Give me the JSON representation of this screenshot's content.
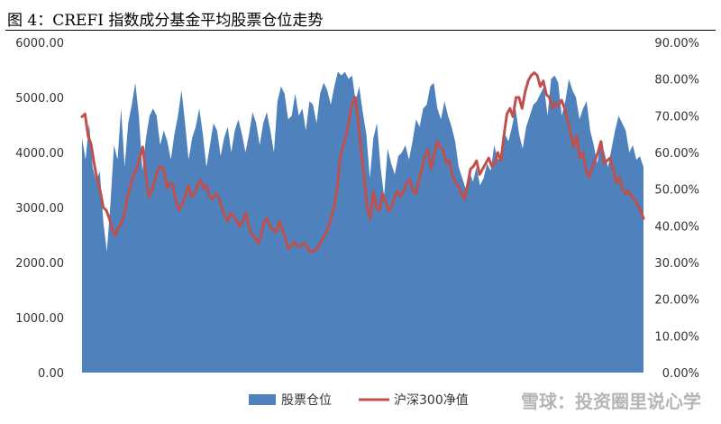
{
  "figure": {
    "title": "图 4：CREFI 指数成分基金平均股票仓位走势",
    "watermark": "雪球：投资圈里说心学"
  },
  "colors": {
    "area": "#4f81bd",
    "line": "#c0504d"
  },
  "chart_data": {
    "type": "area",
    "title": "",
    "left_axis": {
      "min": 0,
      "max": 6000,
      "ticks": [
        "0.00",
        "1000.00",
        "2000.00",
        "3000.00",
        "4000.00",
        "5000.00",
        "6000.00"
      ]
    },
    "right_axis": {
      "min": 0,
      "max": 0.9,
      "ticks": [
        "0.00%",
        "10.00%",
        "20.00%",
        "30.00%",
        "40.00%",
        "50.00%",
        "60.00%",
        "70.00%",
        "80.00%",
        "90.00%"
      ]
    },
    "x_labels_shown": false,
    "series": [
      {
        "name": "股票仓位",
        "type": "area",
        "axis": "right",
        "values": [
          0.64,
          0.58,
          0.68,
          0.56,
          0.52,
          0.55,
          0.41,
          0.33,
          0.46,
          0.62,
          0.58,
          0.72,
          0.56,
          0.68,
          0.73,
          0.79,
          0.7,
          0.55,
          0.64,
          0.7,
          0.72,
          0.7,
          0.62,
          0.66,
          0.63,
          0.58,
          0.65,
          0.7,
          0.77,
          0.68,
          0.58,
          0.64,
          0.67,
          0.72,
          0.65,
          0.56,
          0.62,
          0.68,
          0.66,
          0.59,
          0.64,
          0.67,
          0.6,
          0.66,
          0.69,
          0.65,
          0.6,
          0.65,
          0.71,
          0.68,
          0.62,
          0.68,
          0.71,
          0.66,
          0.6,
          0.74,
          0.78,
          0.76,
          0.69,
          0.7,
          0.76,
          0.7,
          0.72,
          0.66,
          0.74,
          0.73,
          0.68,
          0.76,
          0.79,
          0.77,
          0.73,
          0.78,
          0.82,
          0.81,
          0.82,
          0.8,
          0.81,
          0.74,
          0.78,
          0.71,
          0.65,
          0.53,
          0.64,
          0.68,
          0.56,
          0.48,
          0.61,
          0.57,
          0.54,
          0.59,
          0.6,
          0.62,
          0.58,
          0.63,
          0.69,
          0.67,
          0.72,
          0.73,
          0.78,
          0.79,
          0.72,
          0.69,
          0.74,
          0.7,
          0.67,
          0.63,
          0.56,
          0.53,
          0.5,
          0.55,
          0.52,
          0.56,
          0.51,
          0.53,
          0.57,
          0.55,
          0.62,
          0.58,
          0.6,
          0.65,
          0.63,
          0.67,
          0.72,
          0.65,
          0.61,
          0.67,
          0.7,
          0.73,
          0.74,
          0.76,
          0.78,
          0.7,
          0.8,
          0.81,
          0.79,
          0.7,
          0.74,
          0.8,
          0.77,
          0.75,
          0.69,
          0.72,
          0.74,
          0.66,
          0.62,
          0.57,
          0.63,
          0.6,
          0.56,
          0.61,
          0.66,
          0.7,
          0.68,
          0.66,
          0.6,
          0.62,
          0.58,
          0.59,
          0.56
        ]
      },
      {
        "name": "沪深300净值",
        "type": "line",
        "axis": "left",
        "values": [
          4650,
          4700,
          4300,
          4150,
          3800,
          3500,
          3300,
          3000,
          2950,
          2800,
          2600,
          2500,
          2650,
          2700,
          2900,
          3200,
          3400,
          3600,
          3700,
          3900,
          4100,
          3600,
          3200,
          3300,
          3500,
          3700,
          3750,
          3650,
          3350,
          3450,
          3400,
          3100,
          2950,
          3050,
          3200,
          3400,
          3200,
          3250,
          3400,
          3500,
          3350,
          3400,
          3200,
          3150,
          3250,
          3200,
          3000,
          2850,
          2750,
          2900,
          2850,
          2750,
          2650,
          2750,
          2900,
          2650,
          2500,
          2450,
          2350,
          2500,
          2750,
          2800,
          2650,
          2600,
          2550,
          2750,
          2600,
          2450,
          2250,
          2300,
          2380,
          2300,
          2300,
          2350,
          2300,
          2200,
          2200,
          2230,
          2300,
          2400,
          2500,
          2600,
          2800,
          3000,
          3300,
          3900,
          4100,
          4300,
          4600,
          4900,
          5000,
          4600,
          4000,
          3500,
          3000,
          2800,
          3300,
          3000,
          2950,
          3250,
          3100,
          2950,
          3000,
          3200,
          3300,
          3200,
          3300,
          3450,
          3500,
          3300,
          3250,
          3500,
          3700,
          3950,
          4050,
          3700,
          3950,
          4200,
          4100,
          4050,
          3800,
          3850,
          3600,
          3450,
          3400,
          3250,
          3150,
          3400,
          3700,
          3750,
          3850,
          3600,
          3700,
          3800,
          3900,
          3750,
          3800,
          4000,
          3850,
          4300,
          4700,
          4800,
          4650,
          5000,
          5000,
          4800,
          5100,
          5300,
          5400,
          5450,
          5400,
          5200,
          5300,
          5050,
          5000,
          4800,
          4900,
          4850,
          4950,
          4800,
          4600,
          4350,
          4100,
          4300,
          3900,
          4000,
          3700,
          3550,
          3700,
          3850,
          4000,
          4200,
          3800,
          3850,
          3900,
          3700,
          3450,
          3550,
          3350,
          3250,
          3300,
          3200,
          3150,
          3050,
          2950,
          2800
        ]
      }
    ],
    "legend": {
      "position": "bottom-center",
      "entries": [
        "股票仓位",
        "沪深300净值"
      ]
    }
  }
}
